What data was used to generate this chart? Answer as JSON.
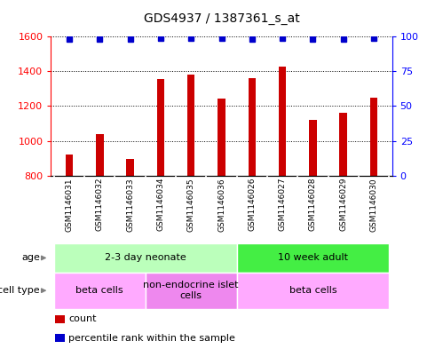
{
  "title": "GDS4937 / 1387361_s_at",
  "samples": [
    "GSM1146031",
    "GSM1146032",
    "GSM1146033",
    "GSM1146034",
    "GSM1146035",
    "GSM1146036",
    "GSM1146026",
    "GSM1146027",
    "GSM1146028",
    "GSM1146029",
    "GSM1146030"
  ],
  "counts": [
    920,
    1040,
    895,
    1355,
    1380,
    1245,
    1360,
    1425,
    1120,
    1160,
    1250
  ],
  "percentiles": [
    98,
    98,
    98,
    99,
    99,
    99,
    98,
    99,
    98,
    98,
    99
  ],
  "ylim_left": [
    800,
    1600
  ],
  "ylim_right": [
    0,
    100
  ],
  "yticks_left": [
    800,
    1000,
    1200,
    1400,
    1600
  ],
  "yticks_right": [
    0,
    25,
    50,
    75,
    100
  ],
  "bar_color": "#CC0000",
  "dot_color": "#0000CC",
  "bar_width": 0.25,
  "age_groups": [
    {
      "label": "2-3 day neonate",
      "start": 0,
      "end": 6,
      "color": "#bbffbb"
    },
    {
      "label": "10 week adult",
      "start": 6,
      "end": 11,
      "color": "#44ee44"
    }
  ],
  "cell_type_groups": [
    {
      "label": "beta cells",
      "start": 0,
      "end": 3,
      "color": "#ffaaff"
    },
    {
      "label": "non-endocrine islet\ncells",
      "start": 3,
      "end": 6,
      "color": "#ee88ee"
    },
    {
      "label": "beta cells",
      "start": 6,
      "end": 11,
      "color": "#ffaaff"
    }
  ],
  "age_row_label": "age",
  "cell_type_row_label": "cell type",
  "legend_items": [
    {
      "color": "#CC0000",
      "label": "count"
    },
    {
      "color": "#0000CC",
      "label": "percentile rank within the sample"
    }
  ],
  "bg_color": "#ffffff",
  "sample_bg_color": "#cccccc",
  "grid_linestyle": "dotted"
}
